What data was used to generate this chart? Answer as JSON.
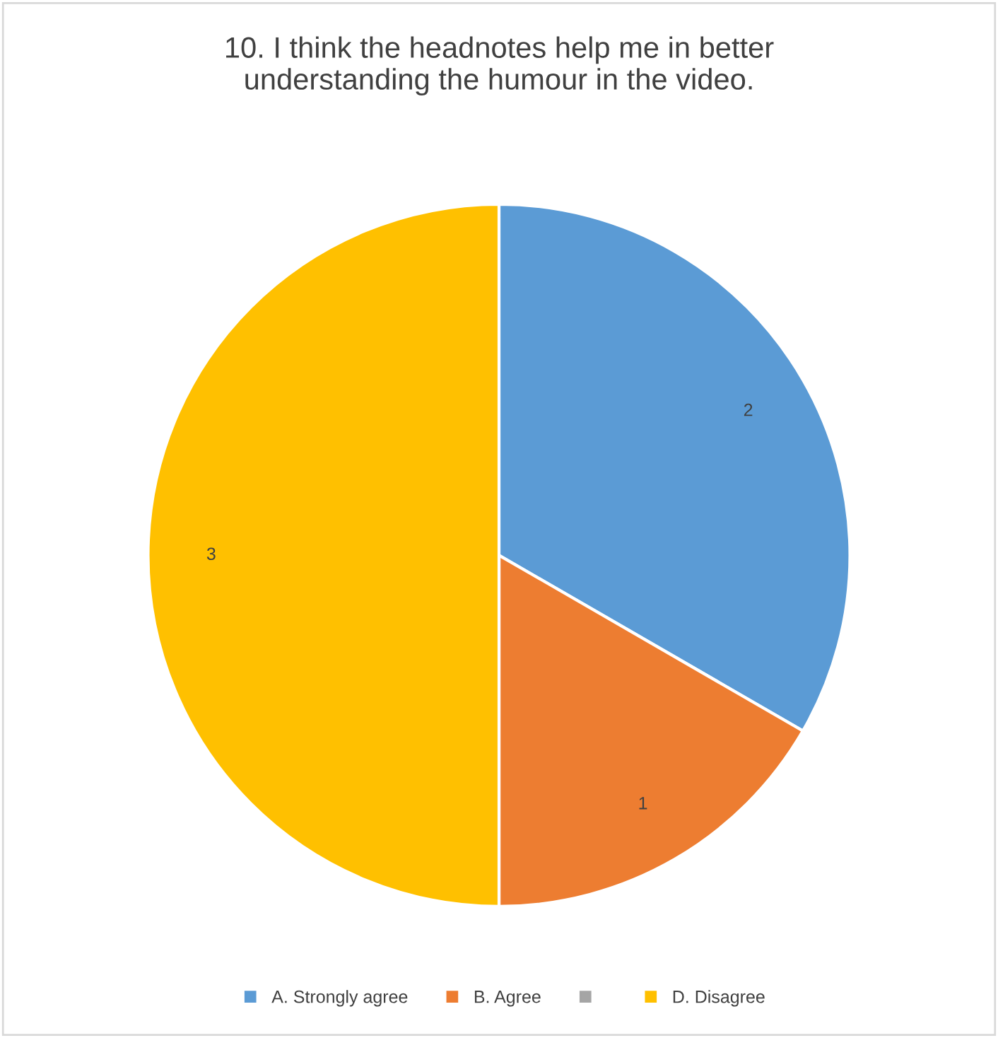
{
  "chart_data": {
    "type": "pie",
    "title": "10. I think the headnotes help me in better understanding the humour in the video.",
    "categories": [
      "A. Strongly agree",
      "B. Agree",
      null,
      "D. Disagree"
    ],
    "values": [
      2,
      1,
      0,
      3
    ],
    "colors": [
      "#5b9bd5",
      "#ed7d31",
      "#a5a5a5",
      "#ffc000"
    ],
    "value_labels": [
      "2",
      "1",
      null,
      "3"
    ],
    "legend": "bottom"
  }
}
